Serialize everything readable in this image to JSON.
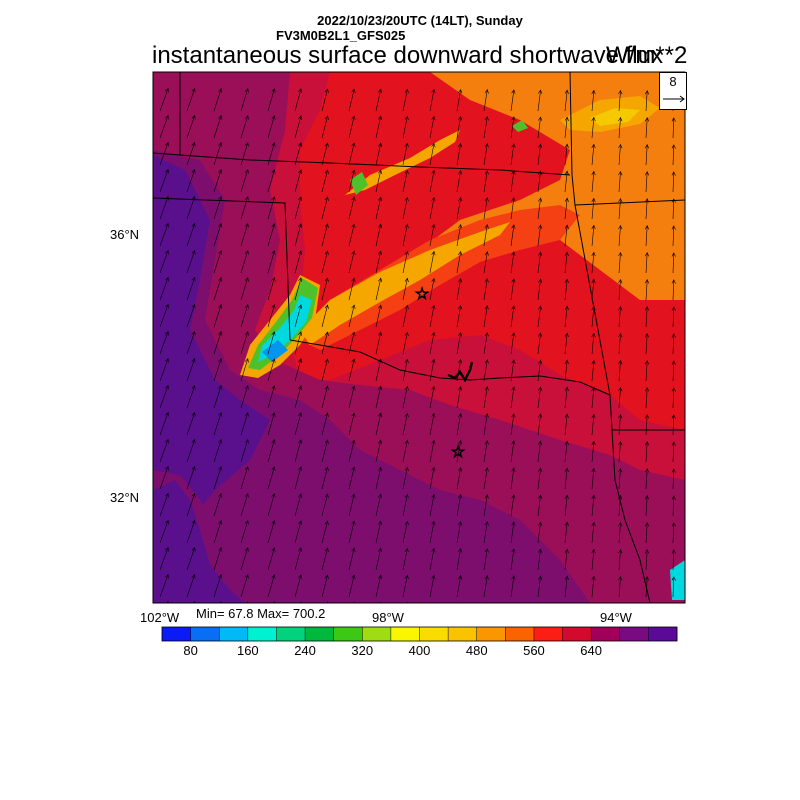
{
  "header": {
    "time_line": "2022/10/23/20UTC (14LT), Sunday",
    "model_line": "FV3M0B2L1_GFS025",
    "main_title": "instantaneous surface downward shortwave flux",
    "units": "W/m**2"
  },
  "map": {
    "lat_labels": [
      "36°N",
      "32°N"
    ],
    "lon_labels": [
      "102°W",
      "98°W",
      "94°W"
    ],
    "min_max_text": "Min= 67.8 Max= 700.2",
    "vector_ref": "8",
    "colors": {
      "deep_purple": "#5a0f8c",
      "purple": "#7e0e6e",
      "magenta_red": "#9a0f58",
      "crimson": "#c8103a",
      "red": "#e3121f",
      "red_orange": "#f54014",
      "orange": "#f57f0e",
      "amber": "#f5a700",
      "gold": "#f5c800",
      "green": "#4ec12a",
      "cyan": "#00d8e0",
      "blue": "#0096f0"
    }
  },
  "colorbar": {
    "colors": [
      "#0a1bf5",
      "#0a6ef5",
      "#00b9f5",
      "#00f0d2",
      "#00d27d",
      "#00b93c",
      "#3cc814",
      "#a0dc14",
      "#faf500",
      "#fadc00",
      "#fac300",
      "#fa9600",
      "#fa6400",
      "#fa1e14",
      "#d20a2d",
      "#a0005a",
      "#780a82",
      "#5a0a96"
    ],
    "labels": [
      "80",
      "160",
      "240",
      "320",
      "400",
      "480",
      "560",
      "640"
    ]
  }
}
